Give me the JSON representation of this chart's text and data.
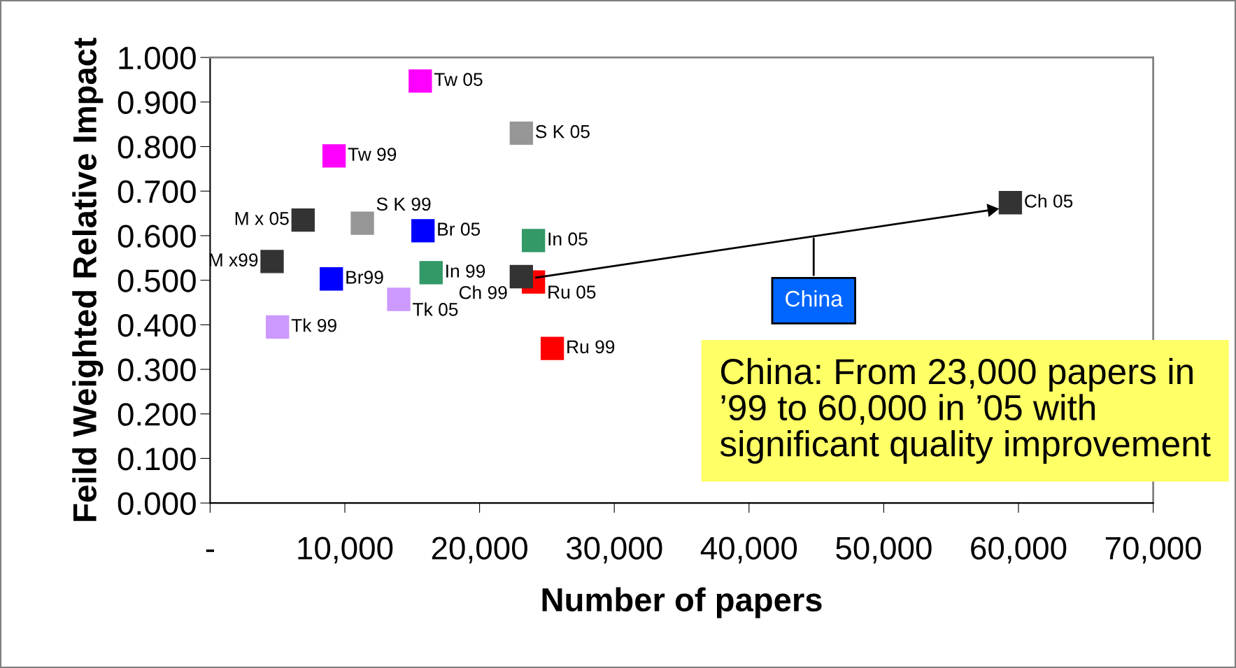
{
  "chart_data": {
    "type": "scatter",
    "xlabel": "Number of papers",
    "ylabel": "Feild Weighted Relative Impact",
    "marker": "square",
    "grid": false,
    "legend": false,
    "xlim": [
      0,
      70000
    ],
    "ylim": [
      0,
      1
    ],
    "xticks": [
      {
        "value": 0,
        "label": "-"
      },
      {
        "value": 10000,
        "label": "10,000"
      },
      {
        "value": 20000,
        "label": "20,000"
      },
      {
        "value": 30000,
        "label": "30,000"
      },
      {
        "value": 40000,
        "label": "40,000"
      },
      {
        "value": 50000,
        "label": "50,000"
      },
      {
        "value": 60000,
        "label": "60,000"
      },
      {
        "value": 70000,
        "label": "70,000"
      }
    ],
    "yticks": [
      {
        "value": 0,
        "label": "0.000"
      },
      {
        "value": 0.1,
        "label": "0.100"
      },
      {
        "value": 0.2,
        "label": "0.200"
      },
      {
        "value": 0.3,
        "label": "0.300"
      },
      {
        "value": 0.4,
        "label": "0.400"
      },
      {
        "value": 0.5,
        "label": "0.500"
      },
      {
        "value": 0.6,
        "label": "0.600"
      },
      {
        "value": 0.7,
        "label": "0.700"
      },
      {
        "value": 0.8,
        "label": "0.800"
      },
      {
        "value": 0.9,
        "label": "0.900"
      },
      {
        "value": 1.0,
        "label": "1.000"
      }
    ],
    "series": [
      {
        "name": "Tw 05",
        "color": "#ff00ff",
        "x": [
          15600
        ],
        "values": [
          0.947
        ]
      },
      {
        "name": "S K 05",
        "color": "#969696",
        "x": [
          23100
        ],
        "values": [
          0.83
        ]
      },
      {
        "name": "Tw 99",
        "color": "#ff00ff",
        "x": [
          9200
        ],
        "values": [
          0.779
        ]
      },
      {
        "name": "M x 05",
        "color": "#333333",
        "x": [
          6900
        ],
        "values": [
          0.635
        ]
      },
      {
        "name": "S K 99",
        "color": "#969696",
        "x": [
          11300
        ],
        "values": [
          0.628
        ]
      },
      {
        "name": "Br 05",
        "color": "#0000ff",
        "x": [
          15800
        ],
        "values": [
          0.611
        ]
      },
      {
        "name": "In 05",
        "color": "#339966",
        "x": [
          24000
        ],
        "values": [
          0.589
        ]
      },
      {
        "name": "M x99",
        "color": "#333333",
        "x": [
          4600
        ],
        "values": [
          0.542
        ]
      },
      {
        "name": "Br99",
        "color": "#0000ff",
        "x": [
          9000
        ],
        "values": [
          0.503
        ]
      },
      {
        "name": "In 99",
        "color": "#339966",
        "x": [
          16400
        ],
        "values": [
          0.517
        ]
      },
      {
        "name": "Ru 05",
        "color": "#ff0000",
        "x": [
          24000
        ],
        "values": [
          0.496
        ]
      },
      {
        "name": "Ch 99",
        "color": "#333333",
        "x": [
          23100
        ],
        "values": [
          0.508
        ]
      },
      {
        "name": "Tk 05",
        "color": "#cc99ff",
        "x": [
          14000
        ],
        "values": [
          0.457
        ]
      },
      {
        "name": "Tk 99",
        "color": "#cc99ff",
        "x": [
          5000
        ],
        "values": [
          0.395
        ]
      },
      {
        "name": "Ru 99",
        "color": "#ff0000",
        "x": [
          25400
        ],
        "values": [
          0.347
        ]
      },
      {
        "name": "Ch 05",
        "color": "#333333",
        "x": [
          59400
        ],
        "values": [
          0.674
        ]
      },
      {
        "type": "line",
        "marker": "triangle",
        "color": "#000000",
        "x": [
          24200,
          58000
        ],
        "values": [
          0.506,
          0.658
        ]
      }
    ],
    "annotations": [
      {
        "text": "China",
        "x": 44800,
        "y": 0.598
      },
      "China: From 23,000 papers in\n’99 to 60,000 in ’05 with\nsignificant quality improvement"
    ]
  }
}
